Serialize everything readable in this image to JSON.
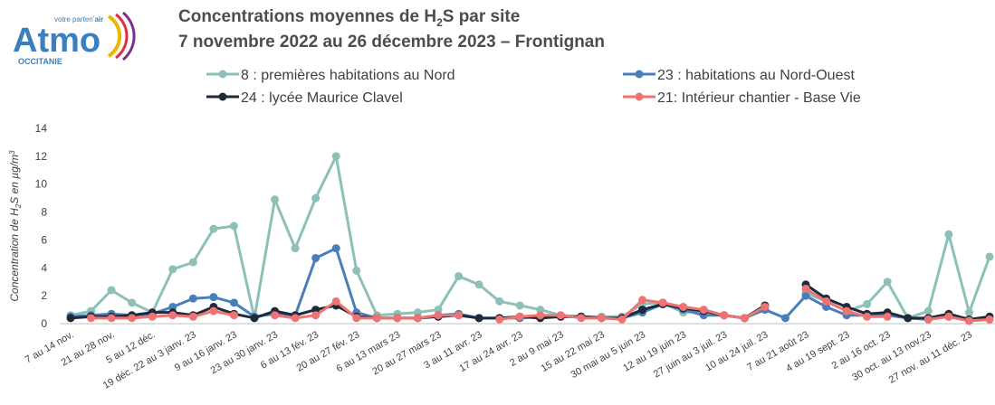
{
  "logo": {
    "tagline": [
      "votre partenʼ",
      "air"
    ],
    "name": "Atmo",
    "region": "OCCITANIE"
  },
  "chart_data": {
    "type": "line",
    "title": [
      "Concentrations moyennes de H",
      "2",
      "S par site"
    ],
    "subtitle": "7 novembre 2022 au 26 décembre 2023 – Frontignan",
    "ylabel": [
      "Concentration de H",
      "2",
      "S en µg/m",
      "3"
    ],
    "categories": [
      "7 au 14 nov.",
      null,
      "21 au 28 nov.",
      null,
      "5 au 12 déc.",
      null,
      "19 déc. 22 au 3 janv. 23",
      null,
      "9 au 16 janv. 23",
      null,
      "23 au 30 janv. 23",
      null,
      "6 au 13 fév. 23",
      null,
      "20 au 27 fév. 23",
      null,
      "6 au 13 mars 23",
      null,
      "20 au 27 mars 23",
      null,
      "3 au 11 avr. 23",
      null,
      "17 au 24 avr. 23",
      null,
      "2 au 9 mai 23",
      null,
      "15 au 22 mai 23",
      null,
      "30 mai au 5 juin 23",
      null,
      "12 au 19 juin 23",
      null,
      "27 juin au 3 juil. 23",
      null,
      "10 au 24 juil. 23",
      null,
      "7 au 21 août 23",
      null,
      "4 au 19 sept. 23",
      null,
      "2 au 16 oct. 23",
      null,
      "30 oct. au 13 nov.23",
      null,
      "27 nov. au 11 déc. 23",
      null
    ],
    "series": [
      {
        "name": "8 : premières habitations au Nord",
        "color": "#8cc0b9",
        "values": [
          0.6,
          0.9,
          2.4,
          1.5,
          0.8,
          3.9,
          4.4,
          6.8,
          7.0,
          0.4,
          8.9,
          5.4,
          9.0,
          12.0,
          3.8,
          0.6,
          0.7,
          0.8,
          1.0,
          3.4,
          2.8,
          1.6,
          1.3,
          1.0,
          0.6,
          0.5,
          0.5,
          0.5,
          1.4,
          1.5,
          0.8,
          0.9,
          0.6,
          0.4,
          1.2,
          null,
          2.2,
          1.6,
          0.9,
          1.4,
          3.0,
          0.4,
          0.9,
          6.4,
          0.8,
          4.8
        ]
      },
      {
        "name": "23 : habitations au Nord-Ouest",
        "color": "#4a7ebb",
        "values": [
          0.5,
          0.6,
          0.7,
          0.6,
          0.7,
          1.2,
          1.8,
          1.9,
          1.5,
          0.5,
          0.7,
          0.6,
          4.7,
          5.4,
          0.8,
          0.4,
          0.4,
          0.4,
          0.6,
          0.7,
          0.4,
          0.4,
          0.4,
          0.5,
          0.5,
          0.5,
          0.4,
          0.4,
          0.8,
          1.4,
          1.0,
          0.6,
          0.6,
          0.4,
          1.0,
          0.4,
          2.0,
          1.2,
          0.6,
          0.6,
          0.6,
          0.4,
          0.3,
          0.5,
          0.2,
          0.3
        ]
      },
      {
        "name": "24 : lycée Maurice Clavel",
        "color": "#1c2a3a",
        "values": [
          0.4,
          0.5,
          0.5,
          0.6,
          0.8,
          0.8,
          0.6,
          1.2,
          0.7,
          0.4,
          0.9,
          0.6,
          1.0,
          1.3,
          0.5,
          0.4,
          0.4,
          0.4,
          0.5,
          0.6,
          0.4,
          0.4,
          0.5,
          0.4,
          0.5,
          0.5,
          0.4,
          0.4,
          1.0,
          1.4,
          1.1,
          0.9,
          0.6,
          0.4,
          1.3,
          null,
          2.8,
          1.8,
          1.2,
          0.7,
          0.8,
          0.4,
          0.4,
          0.7,
          0.3,
          0.5
        ]
      },
      {
        "name": "21: Intérieur chantier - Base Vie",
        "color": "#f07373",
        "values": [
          null,
          0.4,
          0.4,
          0.4,
          0.5,
          0.6,
          0.5,
          0.9,
          0.6,
          null,
          0.6,
          0.4,
          0.6,
          1.6,
          0.4,
          0.4,
          0.4,
          0.4,
          0.6,
          0.6,
          null,
          0.3,
          0.5,
          0.6,
          0.6,
          0.4,
          0.4,
          0.3,
          1.7,
          1.5,
          1.2,
          1.0,
          0.6,
          0.4,
          1.2,
          null,
          2.5,
          1.6,
          0.9,
          0.5,
          0.5,
          null,
          0.3,
          0.5,
          0.2,
          0.3
        ]
      }
    ],
    "ylim": [
      0,
      14
    ],
    "yticks": [
      0,
      2,
      4,
      6,
      8,
      10,
      12,
      14
    ],
    "grid": false
  }
}
